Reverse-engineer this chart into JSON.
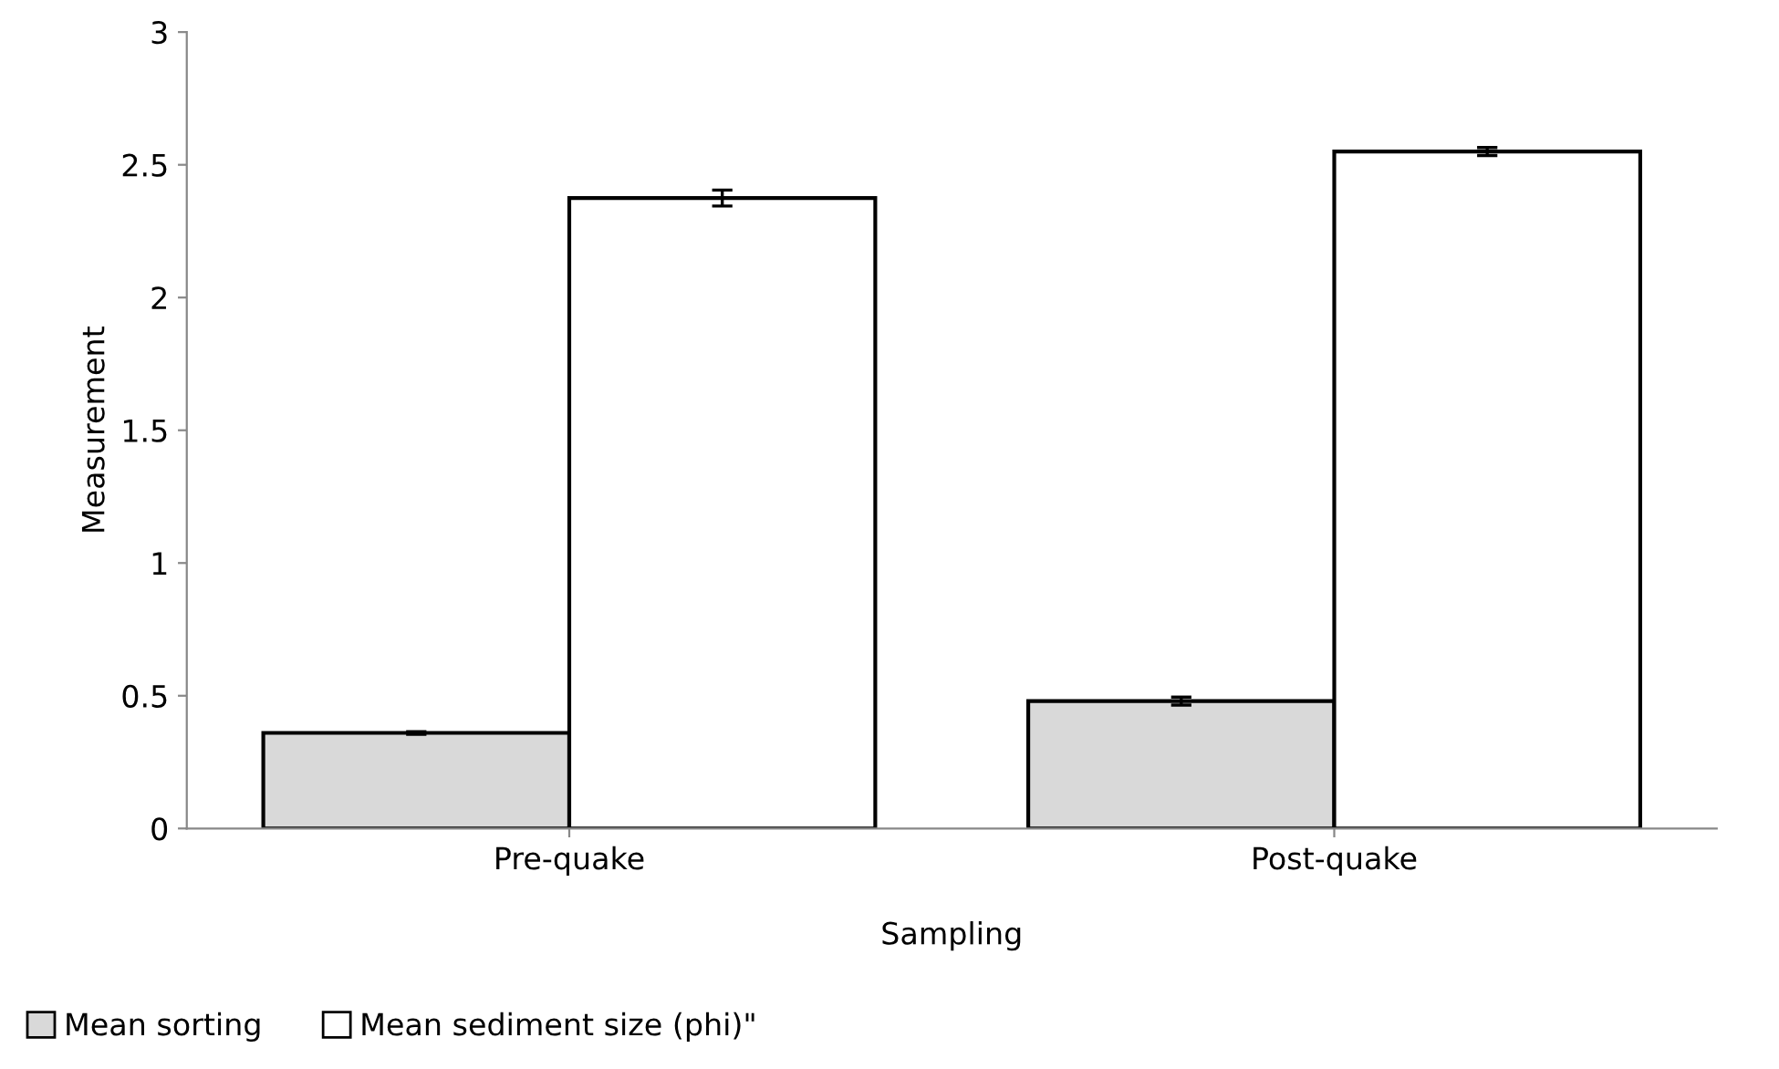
{
  "chart_data": {
    "type": "bar",
    "xlabel": "Sampling",
    "ylabel": "Measurement",
    "categories": [
      "Pre-quake",
      "Post-quake"
    ],
    "series": [
      {
        "name": "Mean sorting",
        "color": "#d9d9d9",
        "values": [
          0.36,
          0.48
        ],
        "errors": [
          0.005,
          0.015
        ]
      },
      {
        "name": "Mean sediment size (phi)\"",
        "color": "#ffffff",
        "values": [
          2.375,
          2.55
        ],
        "errors": [
          0.03,
          0.015
        ]
      }
    ],
    "ylim": [
      0,
      3
    ],
    "yticks": [
      0,
      0.5,
      1,
      1.5,
      2,
      2.5,
      3
    ],
    "grid": false,
    "legend": "bottom left"
  }
}
